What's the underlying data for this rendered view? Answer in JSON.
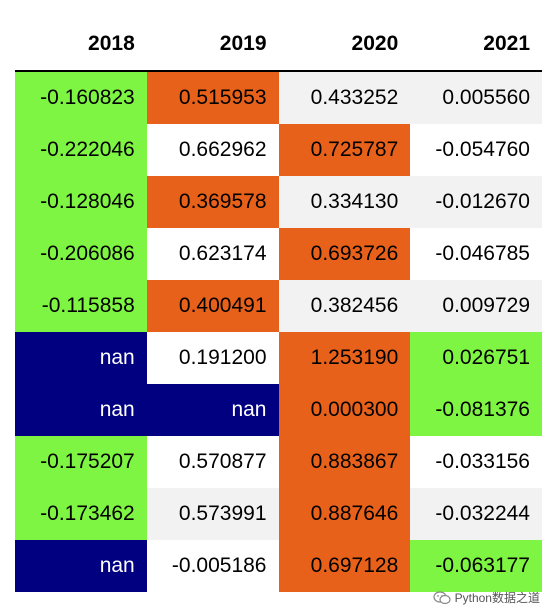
{
  "columns": [
    "2018",
    "2019",
    "2020",
    "2021"
  ],
  "rows": [
    [
      "-0.160823",
      "0.515953",
      "0.433252",
      "0.005560"
    ],
    [
      "-0.222046",
      "0.662962",
      "0.725787",
      "-0.054760"
    ],
    [
      "-0.128046",
      "0.369578",
      "0.334130",
      "-0.012670"
    ],
    [
      "-0.206086",
      "0.623174",
      "0.693726",
      "-0.046785"
    ],
    [
      "-0.115858",
      "0.400491",
      "0.382456",
      "0.009729"
    ],
    [
      "nan",
      "0.191200",
      "1.253190",
      "0.026751"
    ],
    [
      "nan",
      "nan",
      "0.000300",
      "-0.081376"
    ],
    [
      "-0.175207",
      "0.570877",
      "0.883867",
      "-0.033156"
    ],
    [
      "-0.173462",
      "0.573991",
      "0.887646",
      "-0.032244"
    ],
    [
      "nan",
      "-0.005186",
      "0.697128",
      "-0.063177"
    ]
  ],
  "styles": [
    [
      "green",
      "orange",
      "gray",
      "gray"
    ],
    [
      "green",
      "white",
      "orange",
      "white"
    ],
    [
      "green",
      "orange",
      "gray",
      "gray"
    ],
    [
      "green",
      "white",
      "orange",
      "white"
    ],
    [
      "green",
      "orange",
      "gray",
      "gray"
    ],
    [
      "navy",
      "white",
      "orange",
      "green"
    ],
    [
      "navy",
      "navy",
      "orange",
      "green"
    ],
    [
      "green",
      "white",
      "orange",
      "white"
    ],
    [
      "green",
      "gray",
      "orange",
      "gray"
    ],
    [
      "navy",
      "white",
      "orange",
      "green"
    ]
  ],
  "colors": {
    "green": "#7ef542",
    "orange": "#e8611a",
    "navy": "#000080",
    "gray": "#f2f2f2",
    "white": "#ffffff"
  },
  "watermark": {
    "text": "Python数据之道",
    "icon": "wechat-icon"
  }
}
